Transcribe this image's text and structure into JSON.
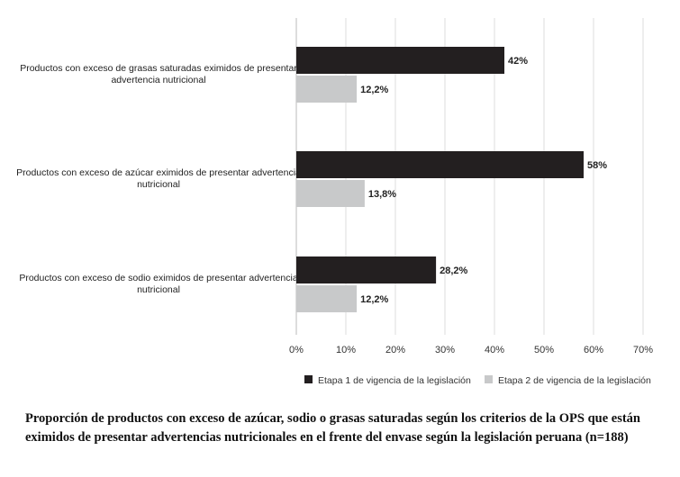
{
  "chart_data": {
    "type": "bar",
    "orientation": "horizontal",
    "categories": [
      [
        "Productos con exceso de grasas saturadas eximidos de presentar",
        "advertencia nutricional"
      ],
      [
        "Productos con exceso de azúcar eximidos de presentar advertencia",
        "nutricional"
      ],
      [
        "Productos con exceso de sodio eximidos  de presentar advertencia",
        "nutricional"
      ]
    ],
    "series": [
      {
        "name": "Etapa 1 de vigencia de la legislación",
        "values": [
          42,
          58,
          28.2
        ],
        "labels": [
          "42%",
          "58%",
          "28,2%"
        ],
        "color": "#231f20"
      },
      {
        "name": "Etapa 2 de vigencia de la legislación",
        "values": [
          12.2,
          13.8,
          12.2
        ],
        "labels": [
          "12,2%",
          "13,8%",
          "12,2%"
        ],
        "color": "#c8c9ca"
      }
    ],
    "xlim": [
      0,
      70
    ],
    "xticks": [
      "0%",
      "10%",
      "20%",
      "30%",
      "40%",
      "50%",
      "60%",
      "70%"
    ],
    "grid": true,
    "legend_placement": "bottom"
  },
  "caption": "Proporción de productos con exceso de azúcar, sodio o grasas saturadas según los criterios de la OPS que están eximidos de presentar advertencias nutricionales en el frente del envase según la legislación peruana (n=188)"
}
